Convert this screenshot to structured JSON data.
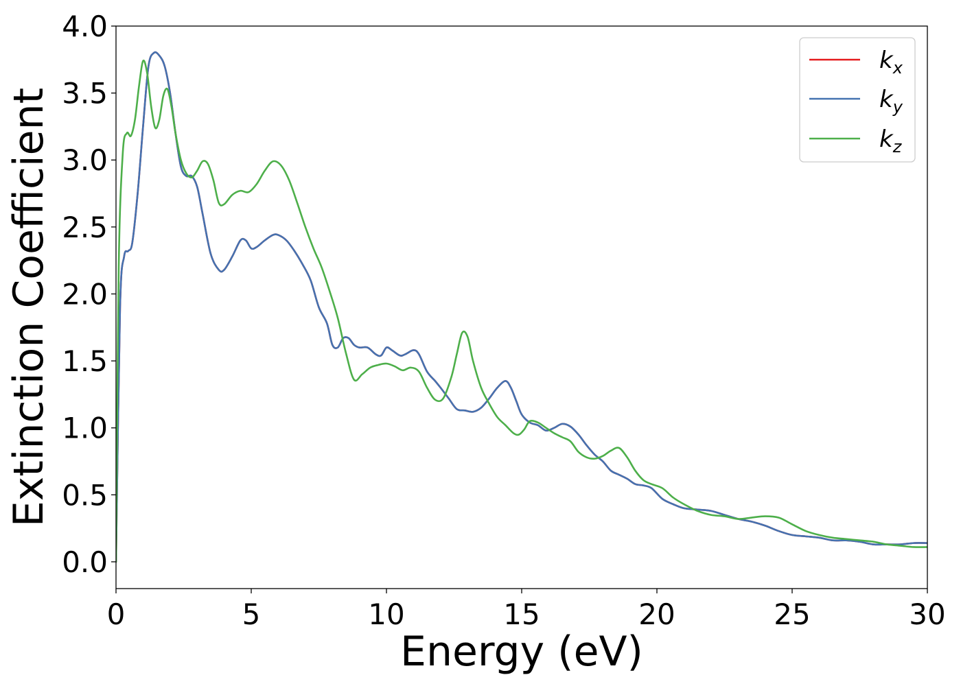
{
  "chart_data": {
    "type": "line",
    "title": "",
    "xlabel": "Energy (eV)",
    "ylabel": "Extinction Coefficient",
    "xlim": [
      0,
      30
    ],
    "ylim": [
      -0.2,
      4.0
    ],
    "xticks": [
      0,
      5,
      10,
      15,
      20,
      25,
      30
    ],
    "xtick_labels": [
      "0",
      "5",
      "10",
      "15",
      "20",
      "25",
      "30"
    ],
    "yticks": [
      0.0,
      0.5,
      1.0,
      1.5,
      2.0,
      2.5,
      3.0,
      3.5,
      4.0
    ],
    "ytick_labels": [
      "0.0",
      "0.5",
      "1.0",
      "1.5",
      "2.0",
      "2.5",
      "3.0",
      "3.5",
      "4.0"
    ],
    "grid": false,
    "legend_position": "top-right",
    "series": [
      {
        "name": "k_x",
        "label_main": "k",
        "label_sub": "x",
        "color": "#e41a1c",
        "x": [
          0,
          0.15,
          0.3,
          0.45,
          0.6,
          0.8,
          1.0,
          1.2,
          1.4,
          1.6,
          1.8,
          2.0,
          2.2,
          2.4,
          2.6,
          2.8,
          3.0,
          3.2,
          3.5,
          3.8,
          4.0,
          4.3,
          4.6,
          4.8,
          5.0,
          5.2,
          5.5,
          5.8,
          6.0,
          6.3,
          6.6,
          6.9,
          7.2,
          7.5,
          7.8,
          8.0,
          8.2,
          8.4,
          8.6,
          8.8,
          9.0,
          9.3,
          9.6,
          9.8,
          10.0,
          10.2,
          10.5,
          10.7,
          11.0,
          11.2,
          11.5,
          11.8,
          12.0,
          12.3,
          12.6,
          12.9,
          13.2,
          13.5,
          13.8,
          14.1,
          14.4,
          14.6,
          14.8,
          15.0,
          15.3,
          15.6,
          15.9,
          16.2,
          16.5,
          16.8,
          17.1,
          17.4,
          17.7,
          18.0,
          18.3,
          18.6,
          18.9,
          19.2,
          19.5,
          19.8,
          20.2,
          20.6,
          21.0,
          21.5,
          22.0,
          22.5,
          23.0,
          23.5,
          24.0,
          24.5,
          25.0,
          25.5,
          26.0,
          26.5,
          27.0,
          27.5,
          28.0,
          28.5,
          29.0,
          29.5,
          30.0
        ],
        "y": [
          0.0,
          1.9,
          2.28,
          2.32,
          2.38,
          2.75,
          3.25,
          3.7,
          3.8,
          3.78,
          3.7,
          3.5,
          3.2,
          2.95,
          2.88,
          2.88,
          2.8,
          2.6,
          2.3,
          2.18,
          2.18,
          2.28,
          2.4,
          2.4,
          2.34,
          2.35,
          2.4,
          2.44,
          2.44,
          2.4,
          2.32,
          2.22,
          2.1,
          1.9,
          1.78,
          1.62,
          1.6,
          1.67,
          1.67,
          1.62,
          1.6,
          1.6,
          1.55,
          1.54,
          1.6,
          1.58,
          1.54,
          1.55,
          1.58,
          1.55,
          1.42,
          1.35,
          1.3,
          1.22,
          1.14,
          1.13,
          1.12,
          1.15,
          1.22,
          1.3,
          1.35,
          1.3,
          1.2,
          1.1,
          1.04,
          1.02,
          0.98,
          1.0,
          1.03,
          1.01,
          0.95,
          0.87,
          0.8,
          0.75,
          0.68,
          0.65,
          0.62,
          0.58,
          0.57,
          0.55,
          0.47,
          0.43,
          0.4,
          0.39,
          0.38,
          0.35,
          0.32,
          0.3,
          0.27,
          0.23,
          0.2,
          0.19,
          0.18,
          0.16,
          0.16,
          0.15,
          0.13,
          0.13,
          0.13,
          0.14,
          0.14
        ]
      },
      {
        "name": "k_y",
        "label_main": "k",
        "label_sub": "y",
        "color": "#4472b0",
        "x": [
          0,
          0.15,
          0.3,
          0.45,
          0.6,
          0.8,
          1.0,
          1.2,
          1.4,
          1.6,
          1.8,
          2.0,
          2.2,
          2.4,
          2.6,
          2.8,
          3.0,
          3.2,
          3.5,
          3.8,
          4.0,
          4.3,
          4.6,
          4.8,
          5.0,
          5.2,
          5.5,
          5.8,
          6.0,
          6.3,
          6.6,
          6.9,
          7.2,
          7.5,
          7.8,
          8.0,
          8.2,
          8.4,
          8.6,
          8.8,
          9.0,
          9.3,
          9.6,
          9.8,
          10.0,
          10.2,
          10.5,
          10.7,
          11.0,
          11.2,
          11.5,
          11.8,
          12.0,
          12.3,
          12.6,
          12.9,
          13.2,
          13.5,
          13.8,
          14.1,
          14.4,
          14.6,
          14.8,
          15.0,
          15.3,
          15.6,
          15.9,
          16.2,
          16.5,
          16.8,
          17.1,
          17.4,
          17.7,
          18.0,
          18.3,
          18.6,
          18.9,
          19.2,
          19.5,
          19.8,
          20.2,
          20.6,
          21.0,
          21.5,
          22.0,
          22.5,
          23.0,
          23.5,
          24.0,
          24.5,
          25.0,
          25.5,
          26.0,
          26.5,
          27.0,
          27.5,
          28.0,
          28.5,
          29.0,
          29.5,
          30.0
        ],
        "y": [
          0.0,
          1.9,
          2.28,
          2.32,
          2.38,
          2.75,
          3.25,
          3.7,
          3.8,
          3.78,
          3.7,
          3.5,
          3.2,
          2.95,
          2.88,
          2.88,
          2.8,
          2.6,
          2.3,
          2.18,
          2.18,
          2.28,
          2.4,
          2.4,
          2.34,
          2.35,
          2.4,
          2.44,
          2.44,
          2.4,
          2.32,
          2.22,
          2.1,
          1.9,
          1.78,
          1.62,
          1.6,
          1.67,
          1.67,
          1.62,
          1.6,
          1.6,
          1.55,
          1.54,
          1.6,
          1.58,
          1.54,
          1.55,
          1.58,
          1.55,
          1.42,
          1.35,
          1.3,
          1.22,
          1.14,
          1.13,
          1.12,
          1.15,
          1.22,
          1.3,
          1.35,
          1.3,
          1.2,
          1.1,
          1.04,
          1.02,
          0.98,
          1.0,
          1.03,
          1.01,
          0.95,
          0.87,
          0.8,
          0.75,
          0.68,
          0.65,
          0.62,
          0.58,
          0.57,
          0.55,
          0.47,
          0.43,
          0.4,
          0.39,
          0.38,
          0.35,
          0.32,
          0.3,
          0.27,
          0.23,
          0.2,
          0.19,
          0.18,
          0.16,
          0.16,
          0.15,
          0.13,
          0.13,
          0.13,
          0.14,
          0.14
        ]
      },
      {
        "name": "k_z",
        "label_main": "k",
        "label_sub": "z",
        "color": "#4daf4a",
        "x": [
          0,
          0.1,
          0.25,
          0.4,
          0.55,
          0.7,
          0.85,
          1.0,
          1.15,
          1.3,
          1.45,
          1.6,
          1.75,
          1.9,
          2.05,
          2.2,
          2.4,
          2.6,
          2.8,
          3.0,
          3.2,
          3.4,
          3.6,
          3.8,
          4.0,
          4.3,
          4.6,
          4.9,
          5.2,
          5.5,
          5.8,
          6.1,
          6.4,
          6.7,
          7.0,
          7.3,
          7.6,
          7.9,
          8.2,
          8.5,
          8.8,
          9.1,
          9.4,
          9.7,
          10.0,
          10.3,
          10.6,
          10.9,
          11.2,
          11.5,
          11.8,
          12.1,
          12.4,
          12.6,
          12.8,
          13.0,
          13.2,
          13.5,
          13.8,
          14.1,
          14.4,
          14.7,
          14.9,
          15.1,
          15.3,
          15.6,
          15.9,
          16.2,
          16.5,
          16.8,
          17.1,
          17.4,
          17.7,
          18.0,
          18.3,
          18.6,
          18.9,
          19.2,
          19.5,
          19.8,
          20.2,
          20.6,
          21.0,
          21.5,
          22.0,
          22.5,
          23.0,
          23.5,
          24.0,
          24.5,
          25.0,
          25.5,
          26.0,
          26.5,
          27.0,
          27.5,
          28.0,
          28.5,
          29.0,
          29.5,
          30.0
        ],
        "y": [
          0.0,
          2.2,
          3.05,
          3.2,
          3.18,
          3.3,
          3.55,
          3.74,
          3.65,
          3.4,
          3.24,
          3.3,
          3.48,
          3.53,
          3.4,
          3.2,
          3.0,
          2.9,
          2.87,
          2.92,
          2.99,
          2.97,
          2.85,
          2.68,
          2.67,
          2.74,
          2.77,
          2.76,
          2.82,
          2.92,
          2.99,
          2.96,
          2.85,
          2.68,
          2.5,
          2.34,
          2.2,
          2.02,
          1.82,
          1.56,
          1.36,
          1.4,
          1.45,
          1.47,
          1.48,
          1.46,
          1.43,
          1.45,
          1.42,
          1.3,
          1.21,
          1.22,
          1.38,
          1.55,
          1.71,
          1.68,
          1.5,
          1.3,
          1.18,
          1.08,
          1.02,
          0.96,
          0.95,
          0.99,
          1.05,
          1.04,
          1.0,
          0.96,
          0.93,
          0.9,
          0.82,
          0.78,
          0.77,
          0.79,
          0.83,
          0.85,
          0.78,
          0.68,
          0.61,
          0.58,
          0.55,
          0.48,
          0.43,
          0.38,
          0.35,
          0.34,
          0.32,
          0.33,
          0.34,
          0.33,
          0.28,
          0.23,
          0.2,
          0.18,
          0.17,
          0.16,
          0.15,
          0.13,
          0.12,
          0.11,
          0.11
        ]
      }
    ]
  }
}
